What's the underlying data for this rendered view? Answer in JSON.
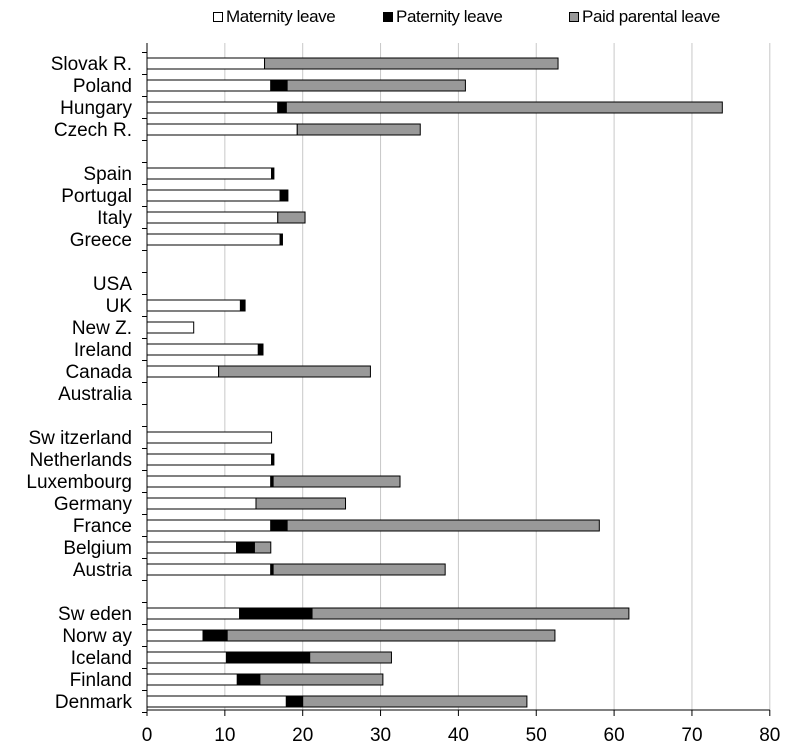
{
  "chart_data": {
    "type": "bar",
    "orientation": "horizontal",
    "stacked": true,
    "title": "",
    "xlabel": "",
    "ylabel": "",
    "xlim": [
      0,
      80
    ],
    "x_ticks": [
      0,
      10,
      20,
      30,
      40,
      50,
      60,
      70,
      80
    ],
    "grid": "vertical",
    "legend_position": "top",
    "colors": {
      "Maternity leave": "#ffffff",
      "Paternity leave": "#000000",
      "Paid parental leave": "#999999"
    },
    "groups": [
      [
        "Slovak R.",
        "Poland",
        "Hungary",
        "Czech R."
      ],
      [
        "Spain",
        "Portugal",
        "Italy",
        "Greece"
      ],
      [
        "USA",
        "UK",
        "New  Z.",
        "Ireland",
        "Canada",
        "Australia"
      ],
      [
        "Sw itzerland",
        "Netherlands",
        "Luxembourg",
        "Germany",
        "France",
        "Belgium",
        "Austria"
      ],
      [
        "Sw eden",
        "Norw ay",
        "Iceland",
        "Finland",
        "Denmark"
      ]
    ],
    "categories": [
      "Slovak R.",
      "Poland",
      "Hungary",
      "Czech R.",
      "Spain",
      "Portugal",
      "Italy",
      "Greece",
      "USA",
      "UK",
      "New  Z.",
      "Ireland",
      "Canada",
      "Australia",
      "Sw itzerland",
      "Netherlands",
      "Luxembourg",
      "Germany",
      "France",
      "Belgium",
      "Austria",
      "Sw eden",
      "Norw ay",
      "Iceland",
      "Finland",
      "Denmark"
    ],
    "series": [
      {
        "name": "Maternity leave",
        "values": [
          15.1,
          15.9,
          16.8,
          19.3,
          16.0,
          17.1,
          16.8,
          17.1,
          0,
          12.0,
          6.0,
          14.3,
          9.2,
          0,
          16.0,
          16.0,
          15.9,
          14.0,
          15.9,
          11.5,
          15.9,
          11.9,
          7.2,
          10.2,
          11.6,
          17.9
        ]
      },
      {
        "name": "Paternity leave",
        "values": [
          0,
          2.1,
          1.1,
          0,
          0.3,
          1.0,
          0,
          0.3,
          0,
          0.6,
          0,
          0.6,
          0,
          0,
          0,
          0.3,
          0.3,
          0,
          2.1,
          2.3,
          0.3,
          9.3,
          3.1,
          10.7,
          2.9,
          2.1
        ]
      },
      {
        "name": "Paid parental leave",
        "values": [
          37.7,
          22.9,
          56.0,
          15.8,
          0,
          0,
          3.5,
          0,
          0,
          0,
          0,
          0,
          19.5,
          0,
          0,
          0,
          16.3,
          11.5,
          40.1,
          2.1,
          22.1,
          40.7,
          42.1,
          10.5,
          15.8,
          28.8
        ]
      }
    ]
  }
}
